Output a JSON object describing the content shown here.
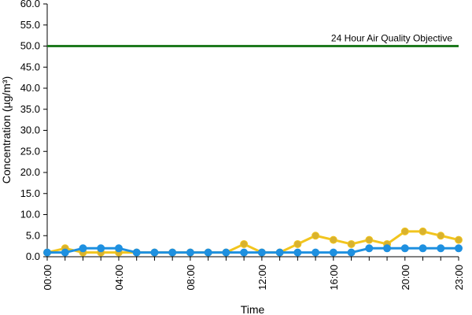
{
  "chart_data": {
    "type": "line",
    "title": "",
    "xlabel": "Time",
    "ylabel": "Concentration (µg/m³)",
    "ylim": [
      0,
      60
    ],
    "y_ticks": [
      "0.0",
      "5.0",
      "10.0",
      "15.0",
      "20.0",
      "25.0",
      "30.0",
      "35.0",
      "40.0",
      "45.0",
      "50.0",
      "55.0",
      "60.0"
    ],
    "x": [
      "00:00",
      "01:00",
      "02:00",
      "03:00",
      "04:00",
      "05:00",
      "06:00",
      "07:00",
      "08:00",
      "09:00",
      "10:00",
      "11:00",
      "12:00",
      "13:00",
      "14:00",
      "15:00",
      "16:00",
      "17:00",
      "18:00",
      "19:00",
      "20:00",
      "21:00",
      "22:00",
      "23:00"
    ],
    "x_tick_labels": [
      "00:00",
      "04:00",
      "08:00",
      "12:00",
      "16:00",
      "20:00",
      "23:00"
    ],
    "grid": false,
    "legend": "none",
    "series": [
      {
        "color": "#F2C51E",
        "marker_color": "#D9B22E",
        "values": [
          1,
          2,
          1,
          1,
          1,
          1,
          1,
          1,
          1,
          1,
          1,
          3,
          1,
          1,
          3,
          5,
          4,
          3,
          4,
          3,
          6,
          6,
          5,
          4
        ]
      },
      {
        "color": "#1E90E0",
        "marker_color": "#1E90E0",
        "values": [
          1,
          1,
          2,
          2,
          2,
          1,
          1,
          1,
          1,
          1,
          1,
          1,
          1,
          1,
          1,
          1,
          1,
          1,
          2,
          2,
          2,
          2,
          2,
          2
        ]
      }
    ],
    "reference_line": {
      "label": "24 Hour Air Quality Objective",
      "value": 50,
      "color": "#1F7A1F"
    }
  }
}
